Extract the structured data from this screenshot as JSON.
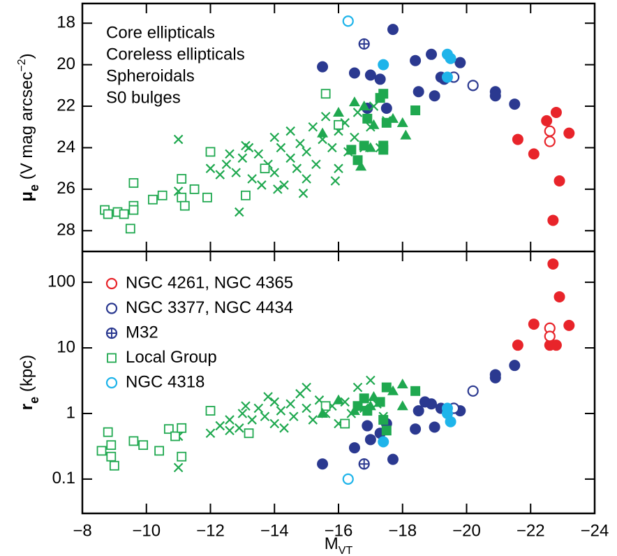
{
  "chart_data": [
    {
      "type": "scatter",
      "ylabel_parts": [
        "μ",
        "e",
        " (V mag arcsec",
        "−2",
        ")"
      ],
      "xlim": [
        -8,
        -24
      ],
      "ylim": [
        29.0,
        17.05
      ],
      "yticks": [
        18,
        20,
        22,
        24,
        26,
        28
      ],
      "series": [
        {
          "name": "Core ellipticals",
          "color": "#e8242a",
          "marker": "circle",
          "x": [
            -21.6,
            -22.1,
            -22.5,
            -22.8,
            -23.2,
            -22.9,
            -22.7
          ],
          "values": [
            23.6,
            24.3,
            22.7,
            22.3,
            23.3,
            25.6,
            27.5
          ]
        },
        {
          "color": "#e8242a",
          "marker": "open-circle",
          "x": [
            -22.6,
            -22.6
          ],
          "values": [
            23.2,
            23.7
          ]
        },
        {
          "name": "Coreless ellipticals",
          "color": "#2b3990",
          "marker": "circle",
          "x": [
            -15.5,
            -16.5,
            -17.0,
            -17.3,
            -17.7,
            -16.9,
            -17.5,
            -18.4,
            -18.5,
            -18.9,
            -19.0,
            -19.2,
            -19.3,
            -19.8,
            -20.9,
            -20.9,
            -21.5
          ],
          "values": [
            20.1,
            20.4,
            20.5,
            20.7,
            18.3,
            22.1,
            22.1,
            19.8,
            21.3,
            19.5,
            21.5,
            20.6,
            20.7,
            19.9,
            21.3,
            21.5,
            21.9
          ]
        },
        {
          "color": "#2b3990",
          "marker": "open-circle",
          "x": [
            -19.6,
            -20.2
          ],
          "values": [
            20.6,
            21.0
          ]
        },
        {
          "color": "#2b3990",
          "marker": "circle-plus",
          "x": [
            -16.8
          ],
          "values": [
            19.0
          ]
        },
        {
          "name": "Spheroidals",
          "color": "#1fa84f",
          "marker": "x",
          "x": [
            -11.0,
            -11.0,
            -12.9,
            -12.0,
            -12.3,
            -12.5,
            -12.8,
            -13.0,
            -13.2,
            -13.3,
            -13.5,
            -13.6,
            -13.8,
            -14.0,
            -14.0,
            -14.2,
            -14.3,
            -14.5,
            -14.5,
            -14.7,
            -14.8,
            -15.0,
            -15.0,
            -15.2,
            -15.3,
            -15.5,
            -15.6,
            -15.8,
            -16.0,
            -16.0,
            -16.2,
            -16.3,
            -16.5,
            -16.6,
            -16.8,
            -17.0,
            -17.1,
            -17.3,
            -17.5,
            -13.1,
            -14.1,
            -12.6,
            -15.9,
            -14.9
          ],
          "values": [
            23.6,
            26.1,
            27.1,
            25.0,
            25.3,
            24.8,
            25.2,
            24.5,
            24.0,
            25.5,
            24.3,
            25.8,
            24.8,
            23.5,
            25.2,
            24.0,
            25.8,
            23.2,
            24.5,
            25.0,
            23.8,
            24.2,
            25.5,
            23.0,
            24.8,
            23.6,
            22.5,
            24.0,
            23.2,
            25.0,
            22.8,
            24.2,
            23.5,
            22.3,
            24.0,
            23.0,
            22.0,
            24.0,
            22.7,
            23.9,
            26.0,
            24.3,
            25.6,
            26.2
          ]
        },
        {
          "color": "#1fa84f",
          "marker": "open-square",
          "x": [
            -8.7,
            -8.8,
            -9.1,
            -9.3,
            -9.5,
            -9.6,
            -9.6,
            -9.6,
            -10.2,
            -10.5,
            -11.1,
            -11.1,
            -11.2,
            -11.5,
            -11.9,
            -12.0,
            -13.1,
            -13.7,
            -15.6,
            -16.0
          ],
          "values": [
            27.0,
            27.2,
            27.1,
            27.2,
            27.9,
            26.8,
            27.0,
            25.7,
            26.5,
            26.3,
            25.5,
            26.4,
            26.8,
            26.0,
            26.4,
            24.2,
            26.3,
            25.0,
            21.4,
            22.9
          ]
        },
        {
          "color": "#1fa84f",
          "marker": "square",
          "x": [
            -16.9,
            -17.3,
            -17.4,
            -17.5,
            -17.4,
            -16.8,
            -16.6,
            -17.4,
            -18.4,
            -16.4
          ],
          "values": [
            22.6,
            21.6,
            21.4,
            22.8,
            23.9,
            23.9,
            24.6,
            24.1,
            22.2,
            24.1
          ]
        },
        {
          "color": "#1fa84f",
          "marker": "triangle",
          "x": [
            -15.5,
            -16.0,
            -16.5,
            -16.8,
            -17.1,
            -17.7,
            -18.0,
            -17.0,
            -16.7,
            -18.1
          ],
          "values": [
            23.3,
            22.3,
            21.8,
            22.0,
            22.9,
            22.6,
            22.8,
            24.0,
            24.9,
            23.4
          ]
        },
        {
          "name": "S0 bulges",
          "color": "#1eb4ea",
          "marker": "circle",
          "x": [
            -17.4,
            -19.4,
            -19.5,
            -19.4
          ],
          "values": [
            20.0,
            19.5,
            19.7,
            20.6
          ]
        },
        {
          "color": "#1eb4ea",
          "marker": "open-circle",
          "x": [
            -16.3
          ],
          "values": [
            17.9
          ]
        }
      ]
    },
    {
      "type": "scatter",
      "xlabel": "M",
      "xlabel_sub": "VT",
      "ylabel_parts": [
        "r",
        "e",
        " (kpc)"
      ],
      "xlim": [
        -8,
        -24
      ],
      "xticks": [
        {
          "value": -8,
          "label": "−8"
        },
        {
          "value": -10,
          "label": "−10"
        },
        {
          "value": -12,
          "label": "−12"
        },
        {
          "value": -14,
          "label": "−14"
        },
        {
          "value": -16,
          "label": "−16"
        },
        {
          "value": -18,
          "label": "−18"
        },
        {
          "value": -20,
          "label": "−20"
        },
        {
          "value": -22,
          "label": "−22"
        },
        {
          "value": -24,
          "label": "−24"
        }
      ],
      "ylim": [
        0.03,
        295
      ],
      "log_y": true,
      "yticks": [
        0.1,
        1,
        10,
        100
      ],
      "series": [
        {
          "color": "#e8242a",
          "marker": "circle",
          "x": [
            -21.6,
            -22.1,
            -22.6,
            -22.8,
            -22.7,
            -22.9,
            -23.2
          ],
          "values": [
            11,
            23,
            11,
            11,
            190,
            60,
            22
          ]
        },
        {
          "name": "NGC 4261, NGC 4365",
          "color": "#e8242a",
          "marker": "open-circle",
          "x": [
            -22.6,
            -22.6
          ],
          "values": [
            20,
            15
          ]
        },
        {
          "color": "#2b3990",
          "marker": "circle",
          "x": [
            -15.5,
            -16.5,
            -16.9,
            -17.3,
            -17.7,
            -17.0,
            -17.5,
            -18.4,
            -18.5,
            -18.9,
            -19.0,
            -19.2,
            -19.8,
            -20.9,
            -20.9,
            -21.5,
            -18.7
          ],
          "values": [
            0.17,
            0.3,
            0.65,
            0.5,
            0.2,
            0.4,
            0.7,
            0.58,
            1.1,
            1.4,
            0.62,
            1.2,
            1.1,
            3.5,
            3.9,
            5.4,
            1.5
          ]
        },
        {
          "name": "NGC 3377, NGC 4434",
          "color": "#2b3990",
          "marker": "open-circle",
          "x": [
            -19.6,
            -20.2
          ],
          "values": [
            1.2,
            2.2
          ]
        },
        {
          "name": "M32",
          "color": "#2b3990",
          "marker": "circle-plus",
          "x": [
            -16.8
          ],
          "values": [
            0.17
          ]
        },
        {
          "color": "#1fa84f",
          "marker": "x",
          "x": [
            -11.0,
            -11.0,
            -12.0,
            -12.3,
            -12.6,
            -12.9,
            -13.0,
            -13.3,
            -13.5,
            -13.7,
            -14.0,
            -14.0,
            -14.2,
            -14.5,
            -14.6,
            -14.8,
            -15.0,
            -15.2,
            -15.4,
            -15.6,
            -15.8,
            -16.0,
            -16.2,
            -16.4,
            -16.6,
            -16.8,
            -17.0,
            -17.2,
            -17.4,
            -13.1,
            -14.3,
            -15.0,
            -12.6,
            -13.8
          ],
          "values": [
            0.15,
            0.45,
            0.5,
            0.65,
            0.8,
            0.6,
            1.0,
            0.8,
            1.2,
            0.9,
            1.5,
            0.7,
            1.1,
            1.4,
            0.9,
            2.0,
            1.2,
            0.8,
            1.6,
            1.0,
            1.3,
            0.7,
            1.5,
            1.0,
            2.5,
            1.2,
            3.2,
            1.4,
            0.9,
            1.3,
            0.6,
            2.5,
            0.55,
            1.8
          ]
        },
        {
          "name": "Local Group",
          "color": "#1fa84f",
          "marker": "open-square",
          "x": [
            -8.6,
            -8.8,
            -8.9,
            -8.9,
            -9.0,
            -9.6,
            -9.9,
            -10.4,
            -10.7,
            -10.9,
            -11.1,
            -11.1,
            -12.0,
            -13.2,
            -15.6,
            -16.2
          ],
          "values": [
            0.27,
            0.52,
            0.22,
            0.33,
            0.16,
            0.38,
            0.33,
            0.27,
            0.58,
            0.45,
            0.6,
            0.22,
            1.1,
            0.5,
            1.3,
            0.7
          ]
        },
        {
          "color": "#1fa84f",
          "marker": "square",
          "x": [
            -16.9,
            -17.3,
            -17.5,
            -17.4,
            -16.8,
            -17.5,
            -18.4,
            -16.6
          ],
          "values": [
            1.1,
            1.5,
            2.5,
            0.8,
            1.7,
            0.55,
            2.2,
            1.3
          ]
        },
        {
          "color": "#1fa84f",
          "marker": "triangle",
          "x": [
            -15.5,
            -16.0,
            -16.5,
            -17.1,
            -17.7,
            -18.0,
            -17.0,
            -18.0
          ],
          "values": [
            1.0,
            1.6,
            1.1,
            1.8,
            2.2,
            2.8,
            1.3,
            1.3
          ]
        },
        {
          "color": "#1eb4ea",
          "marker": "circle",
          "x": [
            -17.4,
            -19.4,
            -19.5,
            -19.4
          ],
          "values": [
            0.37,
            1.2,
            0.75,
            1.0
          ]
        },
        {
          "name": "NGC 4318",
          "color": "#1eb4ea",
          "marker": "open-circle",
          "x": [
            -16.3
          ],
          "values": [
            0.1
          ]
        }
      ]
    }
  ]
}
